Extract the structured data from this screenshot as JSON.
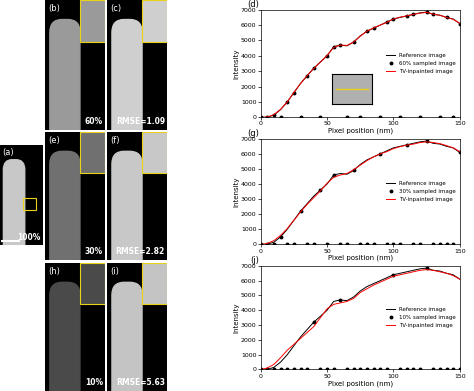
{
  "images": [
    {
      "label": "(a)",
      "text": "100%"
    },
    {
      "label": "(b)",
      "text": "60%"
    },
    {
      "label": "(c)",
      "text": "RMSE=1.09"
    },
    {
      "label": "(e)",
      "text": "30%"
    },
    {
      "label": "(f)",
      "text": "RMSE=2.82"
    },
    {
      "label": "(h)",
      "text": "10%"
    },
    {
      "label": "(i)",
      "text": "RMSE=5.63"
    }
  ],
  "chart_data": [
    {
      "type": "line",
      "label": "(d)",
      "xlabel": "Pixel position (nm)",
      "ylabel": "Intensity",
      "xlim": [
        0,
        150
      ],
      "ylim": [
        0,
        7000
      ],
      "xticks": [
        0,
        50,
        100,
        150
      ],
      "yticks": [
        0,
        1000,
        2000,
        3000,
        4000,
        5000,
        6000,
        7000
      ],
      "legend": "center right",
      "x": [
        0,
        5,
        10,
        15,
        20,
        25,
        30,
        35,
        40,
        45,
        50,
        55,
        60,
        65,
        70,
        75,
        80,
        85,
        90,
        95,
        100,
        105,
        110,
        115,
        120,
        125,
        130,
        135,
        140,
        145,
        150
      ],
      "series": [
        {
          "name": "Reference image",
          "color": "#000000",
          "type": "line",
          "line_style": "solid",
          "values": [
            0,
            0,
            150,
            500,
            1000,
            1600,
            2200,
            2700,
            3200,
            3600,
            4000,
            4600,
            4700,
            4650,
            4900,
            5300,
            5600,
            5800,
            6000,
            6200,
            6400,
            6500,
            6600,
            6700,
            6800,
            6850,
            6700,
            6650,
            6500,
            6400,
            6100
          ]
        },
        {
          "name": "60% sampled image",
          "color": "#000000",
          "type": "scatter",
          "marker": "o",
          "values": [
            0,
            0,
            150,
            0,
            1000,
            1600,
            0,
            2700,
            3200,
            0,
            4000,
            4600,
            4700,
            0,
            4900,
            0,
            5600,
            5800,
            0,
            6200,
            6400,
            0,
            6600,
            6700,
            0,
            6850,
            6700,
            0,
            6500,
            0,
            6100
          ]
        },
        {
          "name": "TV-inpainted image",
          "color": "#ff0000",
          "type": "line",
          "line_style": "solid",
          "values": [
            0,
            20,
            180,
            520,
            1000,
            1620,
            2200,
            2720,
            3180,
            3600,
            4020,
            4550,
            4700,
            4680,
            4900,
            5280,
            5600,
            5820,
            6000,
            6180,
            6400,
            6520,
            6600,
            6700,
            6780,
            6830,
            6720,
            6640,
            6500,
            6380,
            6120
          ]
        }
      ]
    },
    {
      "type": "line",
      "label": "(g)",
      "xlabel": "Pixel position (nm)",
      "ylabel": "Intensity",
      "xlim": [
        0,
        150
      ],
      "ylim": [
        0,
        7000
      ],
      "xticks": [
        0,
        50,
        100,
        150
      ],
      "yticks": [
        0,
        1000,
        2000,
        3000,
        4000,
        5000,
        6000,
        7000
      ],
      "legend": "center right",
      "x": [
        0,
        5,
        10,
        15,
        20,
        25,
        30,
        35,
        40,
        45,
        50,
        55,
        60,
        65,
        70,
        75,
        80,
        85,
        90,
        95,
        100,
        105,
        110,
        115,
        120,
        125,
        130,
        135,
        140,
        145,
        150
      ],
      "series": [
        {
          "name": "Reference image",
          "color": "#000000",
          "type": "line",
          "line_style": "solid",
          "values": [
            0,
            0,
            150,
            500,
            1000,
            1600,
            2200,
            2700,
            3200,
            3600,
            4000,
            4600,
            4700,
            4650,
            4900,
            5300,
            5600,
            5800,
            6000,
            6200,
            6400,
            6500,
            6600,
            6700,
            6800,
            6850,
            6700,
            6650,
            6500,
            6400,
            6100
          ]
        },
        {
          "name": "30% sampled image",
          "color": "#000000",
          "type": "scatter",
          "marker": "o",
          "values": [
            0,
            0,
            0,
            500,
            0,
            0,
            2200,
            0,
            0,
            3600,
            0,
            4600,
            0,
            0,
            4900,
            0,
            0,
            0,
            6000,
            0,
            0,
            0,
            6600,
            0,
            0,
            6850,
            0,
            0,
            0,
            0,
            6100
          ]
        },
        {
          "name": "TV-inpainted image",
          "color": "#ff0000",
          "type": "line",
          "line_style": "solid",
          "values": [
            0,
            60,
            250,
            600,
            1050,
            1600,
            2150,
            2650,
            3100,
            3550,
            4050,
            4450,
            4600,
            4700,
            4950,
            5250,
            5550,
            5800,
            6000,
            6150,
            6350,
            6480,
            6580,
            6650,
            6750,
            6800,
            6750,
            6680,
            6550,
            6400,
            6150
          ]
        }
      ]
    },
    {
      "type": "line",
      "label": "(j)",
      "xlabel": "Pixel position (nm)",
      "ylabel": "Intensity",
      "xlim": [
        0,
        150
      ],
      "ylim": [
        0,
        7000
      ],
      "xticks": [
        0,
        50,
        100,
        150
      ],
      "yticks": [
        0,
        1000,
        2000,
        3000,
        4000,
        5000,
        6000,
        7000
      ],
      "legend": "center right",
      "x": [
        0,
        5,
        10,
        15,
        20,
        25,
        30,
        35,
        40,
        45,
        50,
        55,
        60,
        65,
        70,
        75,
        80,
        85,
        90,
        95,
        100,
        105,
        110,
        115,
        120,
        125,
        130,
        135,
        140,
        145,
        150
      ],
      "series": [
        {
          "name": "Reference image",
          "color": "#000000",
          "type": "line",
          "line_style": "solid",
          "values": [
            0,
            0,
            150,
            500,
            1000,
            1600,
            2200,
            2700,
            3200,
            3600,
            4000,
            4600,
            4700,
            4650,
            4900,
            5300,
            5600,
            5800,
            6000,
            6200,
            6400,
            6500,
            6600,
            6700,
            6800,
            6850,
            6700,
            6650,
            6500,
            6400,
            6100
          ]
        },
        {
          "name": "10% sampled image",
          "color": "#000000",
          "type": "scatter",
          "marker": "o",
          "values": [
            0,
            0,
            0,
            0,
            0,
            0,
            0,
            0,
            3200,
            0,
            0,
            0,
            4700,
            0,
            0,
            0,
            0,
            0,
            0,
            0,
            6400,
            0,
            0,
            0,
            0,
            6850,
            0,
            0,
            0,
            0,
            0
          ]
        },
        {
          "name": "TV-inpainted image",
          "color": "#ff0000",
          "type": "line",
          "line_style": "solid",
          "values": [
            0,
            100,
            350,
            800,
            1300,
            1700,
            2100,
            2500,
            2900,
            3500,
            4100,
            4400,
            4500,
            4600,
            4800,
            5200,
            5450,
            5700,
            5900,
            6100,
            6300,
            6400,
            6500,
            6600,
            6700,
            6750,
            6700,
            6600,
            6500,
            6350,
            6100
          ]
        }
      ]
    }
  ]
}
